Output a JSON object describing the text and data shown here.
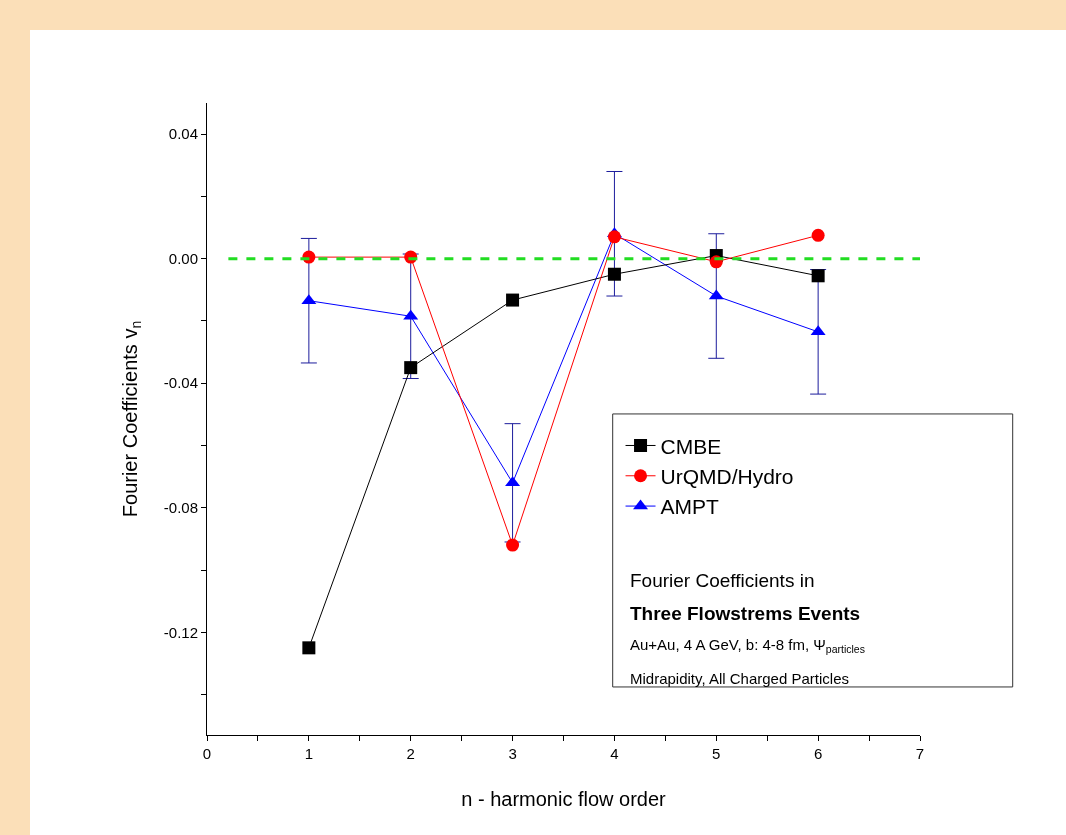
{
  "chart_data": {
    "type": "line",
    "xlabel": "n - harmonic flow order",
    "ylabel": "Fourier Coefficients v$_{n}$",
    "x": [
      1,
      2,
      3,
      4,
      5,
      6
    ],
    "series": [
      {
        "name": "CMBE",
        "color": "#000000",
        "marker": "square",
        "values": [
          -0.125,
          -0.035,
          -0.0133,
          -0.005,
          0.001,
          -0.0055
        ]
      },
      {
        "name": "UrQMD/Hydro",
        "color": "#ff0000",
        "marker": "circle",
        "values": [
          0.0005,
          0.0005,
          -0.092,
          0.007,
          -0.001,
          0.0075
        ]
      },
      {
        "name": "AMPT",
        "color": "#0000ff",
        "marker": "triangle",
        "values": [
          -0.0135,
          -0.0185,
          -0.072,
          0.008,
          -0.012,
          -0.0235
        ],
        "errors": [
          0.02,
          0.02,
          0.019,
          0.02,
          0.02,
          0.02
        ]
      }
    ],
    "xlim": [
      0,
      7
    ],
    "xticks": [
      0,
      {
        "value": 0.5,
        "label": null
      },
      1,
      {
        "value": 1.5,
        "label": null
      },
      2,
      {
        "value": 2.5,
        "label": null
      },
      3,
      {
        "value": 3.5,
        "label": null
      },
      4,
      {
        "value": 4.5,
        "label": null
      },
      5,
      {
        "value": 5.5,
        "label": null
      },
      6,
      {
        "value": 6.5,
        "label": null
      },
      7
    ],
    "ylim": [
      -0.153,
      0.05
    ],
    "yticks": [
      {
        "value": 0.04,
        "label": "0.04"
      },
      {
        "value": 0.02,
        "label": null
      },
      {
        "value": 0,
        "label": "0.00"
      },
      {
        "value": -0.02,
        "label": null
      },
      {
        "value": -0.04,
        "label": "-0.04"
      },
      {
        "value": -0.06,
        "label": null
      },
      {
        "value": -0.08,
        "label": "-0.08"
      },
      {
        "value": -0.1,
        "label": null
      },
      {
        "value": -0.12,
        "label": "-0.12"
      },
      {
        "value": -0.14,
        "label": null
      }
    ],
    "ref_lines": [
      {
        "axis": "y",
        "value": 0,
        "color": "#22dd22",
        "line_style": "dashed"
      }
    ],
    "grid": false,
    "legend": "bottom right",
    "line_style": "solid",
    "annotations": [
      "Fourier Coefficients in",
      "Three Flowstrems Events",
      "Au+Au, 4 A GeV, b: 4-8 fm, Ψ$_{particles}$",
      "Midrapidity, All Charged Particles"
    ]
  }
}
